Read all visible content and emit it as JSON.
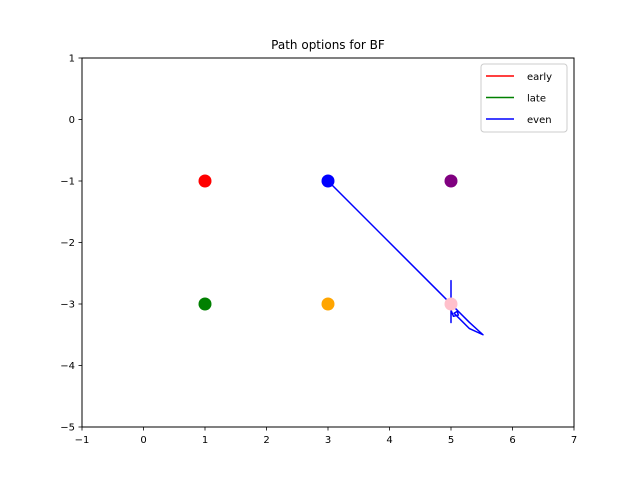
{
  "chart_data": {
    "type": "scatter",
    "title": "Path options for BF",
    "xlabel": "",
    "ylabel": "",
    "xlim": [
      -1,
      7
    ],
    "ylim": [
      -5,
      1
    ],
    "xticks": [
      -1,
      0,
      1,
      2,
      3,
      4,
      5,
      6,
      7
    ],
    "yticks": [
      1,
      0,
      -1,
      -2,
      -3,
      -4,
      -5
    ],
    "xtick_labels": [
      "−1",
      "0",
      "1",
      "2",
      "3",
      "4",
      "5",
      "6",
      "7"
    ],
    "ytick_labels": [
      "1",
      "0",
      "−1",
      "−2",
      "−3",
      "−4",
      "−5"
    ],
    "grid": false,
    "legend_position": "top-right",
    "points": [
      {
        "x": 1,
        "y": -1,
        "color": "#ff0000"
      },
      {
        "x": 3,
        "y": -1,
        "color": "#0000ff"
      },
      {
        "x": 5,
        "y": -1,
        "color": "#800080"
      },
      {
        "x": 1,
        "y": -3,
        "color": "#008000"
      },
      {
        "x": 3,
        "y": -3,
        "color": "#ffa500"
      },
      {
        "x": 5,
        "y": -3,
        "color": "#ffc0cb"
      }
    ],
    "series": [
      {
        "name": "early",
        "color": "#ff0000",
        "x": [],
        "y": []
      },
      {
        "name": "late",
        "color": "#008000",
        "x": [],
        "y": []
      },
      {
        "name": "even",
        "color": "#0000ff",
        "x": [
          3,
          4.0,
          4.8,
          5.0,
          5.3,
          5.52,
          5.3,
          5.1,
          5.05,
          5.1,
          5.12,
          5.04,
          5.0,
          5.0,
          5.0,
          5.0
        ],
        "y": [
          -1,
          -2.0,
          -2.8,
          -3.0,
          -3.3,
          -3.5,
          -3.4,
          -3.2,
          -3.15,
          -3.12,
          -3.18,
          -3.2,
          -3.1,
          -2.62,
          -3.3,
          -3.0
        ]
      }
    ]
  }
}
